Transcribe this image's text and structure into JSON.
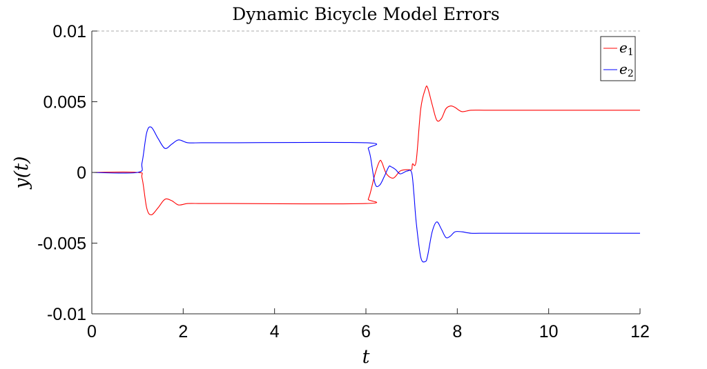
{
  "chart_data": {
    "type": "line",
    "title": "Dynamic Bicycle Model Errors",
    "xlabel": "t",
    "ylabel": "y(t)",
    "xlim": [
      0,
      12
    ],
    "ylim": [
      -0.01,
      0.01
    ],
    "xticks": [
      0,
      2,
      4,
      6,
      8,
      10,
      12
    ],
    "xtick_labels": [
      "0",
      "2",
      "4",
      "6",
      "8",
      "10",
      "12"
    ],
    "yticks": [
      -0.01,
      -0.005,
      0,
      0.005,
      0.01
    ],
    "ytick_labels": [
      "-0.01",
      "-0.005",
      "0",
      "0.005",
      "0.01"
    ],
    "grid": false,
    "reference_line": {
      "y": 0.01,
      "style": "dashed",
      "color": "#aaaaaa"
    },
    "legend_position": "top-right",
    "series": [
      {
        "name": "e1",
        "color": "#ff0000",
        "x": [
          0,
          1.0,
          1.1,
          1.2,
          1.3,
          1.45,
          1.6,
          1.75,
          1.9,
          2.1,
          2.4,
          3.0,
          6.0,
          6.05,
          6.1,
          6.2,
          6.3,
          6.35,
          6.45,
          6.6,
          6.75,
          6.9,
          7.0,
          7.02,
          7.1,
          7.2,
          7.3,
          7.35,
          7.45,
          7.55,
          7.65,
          7.75,
          7.85,
          7.95,
          8.1,
          8.3,
          8.6,
          9.0,
          12.0
        ],
        "y": [
          0,
          0,
          -0.0004,
          -0.0025,
          -0.003,
          -0.0025,
          -0.0019,
          -0.002,
          -0.0023,
          -0.0022,
          -0.0022,
          -0.0022,
          -0.0022,
          -0.0019,
          -0.0014,
          -0.0001,
          0.0008,
          0.0007,
          -0.0001,
          -0.0004,
          0.0001,
          0.0002,
          0.0002,
          0.0006,
          0.0008,
          0.0045,
          0.0059,
          0.006,
          0.0048,
          0.0037,
          0.0038,
          0.0045,
          0.0047,
          0.0046,
          0.0043,
          0.0044,
          0.0044,
          0.0044,
          0.0044
        ]
      },
      {
        "name": "e2",
        "color": "#0000ff",
        "x": [
          0,
          1.0,
          1.1,
          1.2,
          1.3,
          1.45,
          1.6,
          1.75,
          1.9,
          2.1,
          2.4,
          3.0,
          6.0,
          6.05,
          6.1,
          6.2,
          6.3,
          6.4,
          6.5,
          6.55,
          6.65,
          6.75,
          6.9,
          7.0,
          7.05,
          7.1,
          7.2,
          7.3,
          7.35,
          7.45,
          7.55,
          7.65,
          7.75,
          7.85,
          7.95,
          8.1,
          8.3,
          8.6,
          9.0,
          12.0
        ],
        "y": [
          0,
          0,
          0.0007,
          0.0028,
          0.0032,
          0.0024,
          0.0017,
          0.002,
          0.0023,
          0.0021,
          0.0021,
          0.0021,
          0.0021,
          0.0017,
          0.0011,
          -0.0008,
          -0.0009,
          -0.0003,
          0.0004,
          0.0004,
          0.0002,
          -0.0001,
          0.0001,
          0.0,
          -0.0015,
          -0.0035,
          -0.006,
          -0.0063,
          -0.0059,
          -0.0042,
          -0.0035,
          -0.004,
          -0.0046,
          -0.0045,
          -0.0042,
          -0.0042,
          -0.0043,
          -0.0043,
          -0.0043,
          -0.0043
        ]
      }
    ]
  }
}
